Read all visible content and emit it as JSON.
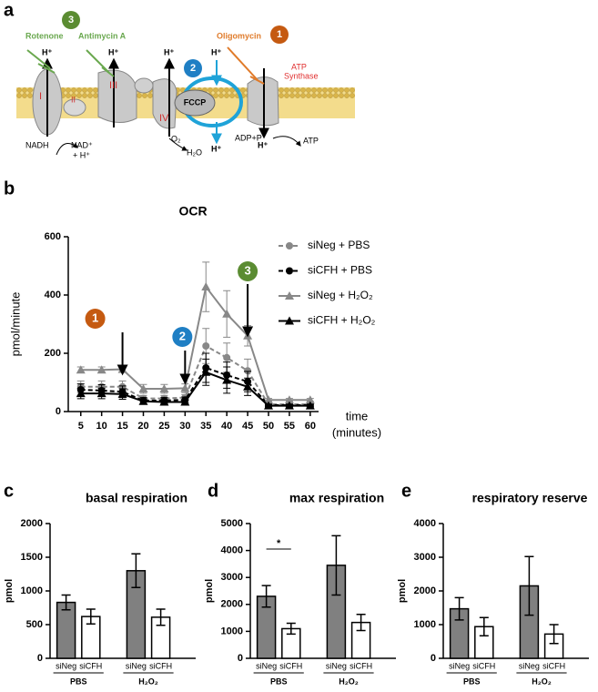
{
  "diagram": {
    "panel": "a",
    "steps": [
      "1",
      "2",
      "3"
    ],
    "rotenone": "Rotenone",
    "antimycin": "Antimycin A",
    "oligomycin": "Oligomycin",
    "atp_synthase": [
      "ATP",
      "Synthase"
    ],
    "fccp": "FCCP",
    "complexes": [
      "I",
      "II",
      "III",
      "IV"
    ],
    "proton": "H⁺",
    "nadh": "NADH",
    "nad": [
      "NAD⁺",
      "+ H⁺"
    ],
    "o2": "O₂",
    "h2o": "H₂O",
    "adp": "ADP+P",
    "atp": "ATP"
  },
  "chart_data": [
    {
      "panel": "b",
      "type": "line",
      "title": "OCR",
      "y_label": "pmol/minute",
      "x_label": [
        "time",
        "(minutes)"
      ],
      "x": [
        5,
        10,
        15,
        20,
        25,
        30,
        35,
        40,
        45,
        50,
        55,
        60
      ],
      "xlim": [
        2,
        62
      ],
      "xticks": [
        5,
        10,
        15,
        20,
        25,
        30,
        35,
        40,
        45,
        50,
        55,
        60
      ],
      "ylim": [
        0,
        600
      ],
      "yticks": [
        0,
        200,
        400,
        600
      ],
      "series": [
        {
          "name": "siNeg + PBS",
          "color": "#888888",
          "marker": "circle",
          "dashed": true,
          "values": [
            85,
            85,
            85,
            45,
            45,
            48,
            225,
            185,
            140,
            25,
            25,
            25
          ],
          "errors": [
            20,
            20,
            20,
            10,
            10,
            10,
            60,
            50,
            40,
            5,
            5,
            5
          ]
        },
        {
          "name": "siCFH + PBS",
          "color": "#000000",
          "marker": "circle",
          "dashed": true,
          "values": [
            75,
            72,
            68,
            38,
            38,
            40,
            150,
            125,
            103,
            22,
            22,
            22
          ],
          "errors": [
            20,
            20,
            20,
            10,
            10,
            10,
            50,
            45,
            35,
            5,
            5,
            5
          ]
        },
        {
          "name": "siNeg + H₂O₂",
          "color": "#888888",
          "marker": "triangle",
          "dashed": false,
          "values": [
            143,
            143,
            145,
            78,
            78,
            80,
            428,
            335,
            260,
            40,
            40,
            40
          ],
          "errors": [
            10,
            10,
            10,
            15,
            15,
            15,
            85,
            80,
            35,
            5,
            5,
            5
          ]
        },
        {
          "name": "siCFH + H₂O₂",
          "color": "#000000",
          "marker": "triangle",
          "dashed": false,
          "values": [
            62,
            62,
            60,
            35,
            33,
            33,
            135,
            108,
            85,
            20,
            20,
            20
          ],
          "errors": [
            18,
            18,
            18,
            8,
            8,
            8,
            45,
            45,
            30,
            5,
            5,
            5
          ]
        }
      ],
      "annotations": [
        {
          "label": "1",
          "x": 15,
          "color": "#c55a11"
        },
        {
          "label": "2",
          "x": 30,
          "color": "#1f7fc4"
        },
        {
          "label": "3",
          "x": 45,
          "color": "#5b8c32"
        }
      ]
    },
    {
      "panel": "c",
      "type": "bar",
      "title": "basal respiration",
      "y_label": "pmol",
      "categories": [
        "siNeg",
        "siCFH",
        "siNeg",
        "siCFH"
      ],
      "groups": [
        "PBS",
        "H₂O₂"
      ],
      "values": [
        830,
        620,
        1300,
        610
      ],
      "errors": [
        110,
        110,
        250,
        120
      ],
      "colors": [
        "#808080",
        "#ffffff",
        "#808080",
        "#ffffff"
      ],
      "ylim": [
        0,
        2000
      ],
      "yticks": [
        0,
        500,
        1000,
        1500,
        2000
      ]
    },
    {
      "panel": "d",
      "type": "bar",
      "title": "max respiration",
      "y_label": "pmol",
      "categories": [
        "siNeg",
        "siCFH",
        "siNeg",
        "siCFH"
      ],
      "groups": [
        "PBS",
        "H₂O₂"
      ],
      "values": [
        2300,
        1100,
        3450,
        1330
      ],
      "errors": [
        400,
        200,
        1100,
        300
      ],
      "colors": [
        "#808080",
        "#ffffff",
        "#808080",
        "#ffffff"
      ],
      "ylim": [
        0,
        5000
      ],
      "yticks": [
        0,
        1000,
        2000,
        3000,
        4000,
        5000
      ],
      "significance": "*"
    },
    {
      "panel": "e",
      "type": "bar",
      "title": "respiratory reserve",
      "y_label": "pmol",
      "categories": [
        "siNeg",
        "siCFH",
        "siNeg",
        "siCFH"
      ],
      "groups": [
        "PBS",
        "H₂O₂"
      ],
      "values": [
        1470,
        940,
        2150,
        720
      ],
      "errors": [
        330,
        270,
        870,
        280
      ],
      "colors": [
        "#808080",
        "#ffffff",
        "#808080",
        "#ffffff"
      ],
      "ylim": [
        0,
        4000
      ],
      "yticks": [
        0,
        1000,
        2000,
        3000,
        4000
      ]
    }
  ]
}
